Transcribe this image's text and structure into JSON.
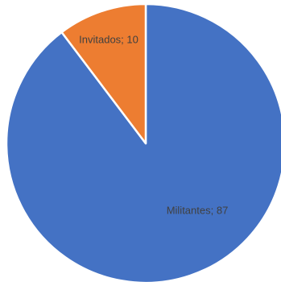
{
  "chart_data": {
    "type": "pie",
    "categories": [
      "Militantes",
      "Invitados"
    ],
    "values": [
      87,
      10
    ],
    "data_labels": [
      "Militantes; 87",
      "Invitados; 10"
    ],
    "colors": [
      "#4472C4",
      "#ED7D31"
    ],
    "slice_border_color": "#FFFFFF",
    "start_angle_deg": 0,
    "direction": "clockwise",
    "legend": "none",
    "title": ""
  }
}
